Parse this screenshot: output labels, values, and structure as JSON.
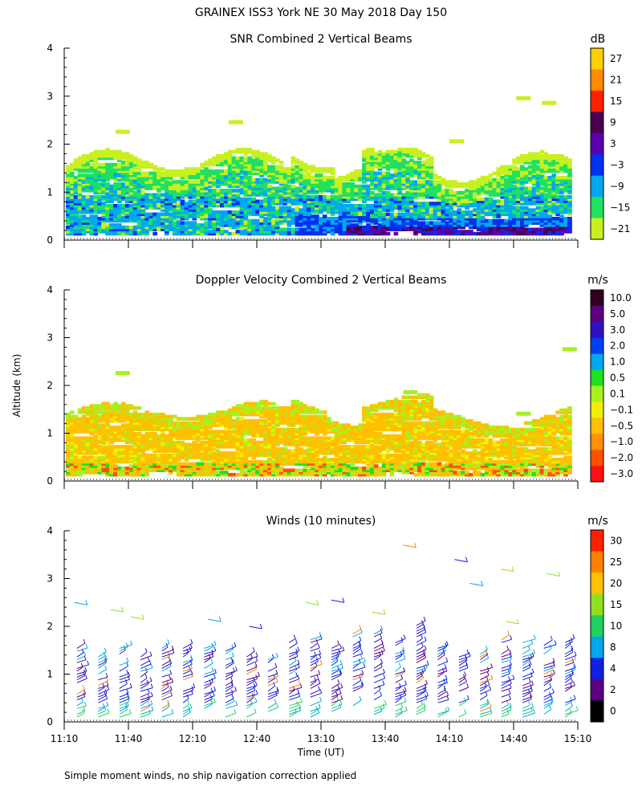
{
  "figure": {
    "title": "GRAINEX ISS3 York NE  30 May 2018 Day 150",
    "ylabel": "Altitude (km)",
    "xlabel": "Time (UT)",
    "footnote": "Simple moment winds, no ship navigation correction applied",
    "x_ticks": [
      "11:10",
      "11:40",
      "12:10",
      "12:40",
      "13:10",
      "13:40",
      "14:10",
      "14:40",
      "15:10"
    ]
  },
  "chart_data": [
    {
      "type": "heatmap",
      "title": "SNR Combined 2 Vertical Beams",
      "colorbar_unit": "dB",
      "colorbar_labels": [
        "27",
        "21",
        "15",
        "9",
        "3",
        "−3",
        "−9",
        "−15",
        "−21"
      ],
      "colorbar_colors": [
        "#ffd000",
        "#ff8c00",
        "#ff2000",
        "#4a0050",
        "#5a00b0",
        "#0030f0",
        "#00a8f0",
        "#20e060",
        "#c8f020"
      ],
      "y_ticks": [
        "0",
        "1",
        "2",
        "3",
        "4"
      ],
      "ylim": [
        0,
        4
      ],
      "xlim": [
        "11:10",
        "15:10"
      ],
      "dominant_range_km": [
        0.15,
        1.8
      ]
    },
    {
      "type": "heatmap",
      "title": "Doppler Velocity Combined 2 Vertical Beams",
      "colorbar_unit": "m/s",
      "colorbar_labels": [
        "10.0",
        "5.0",
        "3.0",
        "2.0",
        "1.0",
        "0.5",
        "0.1",
        "−0.1",
        "−0.5",
        "−1.0",
        "−2.0",
        "−3.0"
      ],
      "colorbar_colors": [
        "#300020",
        "#5a0080",
        "#3010c0",
        "#0040f0",
        "#00a8f0",
        "#20e020",
        "#a8f020",
        "#f0f000",
        "#ffc000",
        "#ff9000",
        "#ff5000",
        "#ff1010"
      ],
      "y_ticks": [
        "0",
        "1",
        "2",
        "3",
        "4"
      ],
      "ylim": [
        0,
        4
      ],
      "xlim": [
        "11:10",
        "15:10"
      ],
      "dominant_range_km": [
        0.15,
        1.6
      ]
    },
    {
      "type": "scatter",
      "title": "Winds (10 minutes)",
      "colorbar_unit": "m/s",
      "colorbar_labels": [
        "30",
        "25",
        "20",
        "15",
        "10",
        "8",
        "4",
        "2",
        "0"
      ],
      "colorbar_colors": [
        "#ff2000",
        "#ff8000",
        "#ffc000",
        "#90e020",
        "#20d060",
        "#00a8f0",
        "#1020e0",
        "#5a0080",
        "#000000"
      ],
      "y_ticks": [
        "0",
        "1",
        "2",
        "3",
        "4"
      ],
      "ylim": [
        0,
        4
      ],
      "xlim": [
        "11:10",
        "15:10"
      ]
    }
  ]
}
